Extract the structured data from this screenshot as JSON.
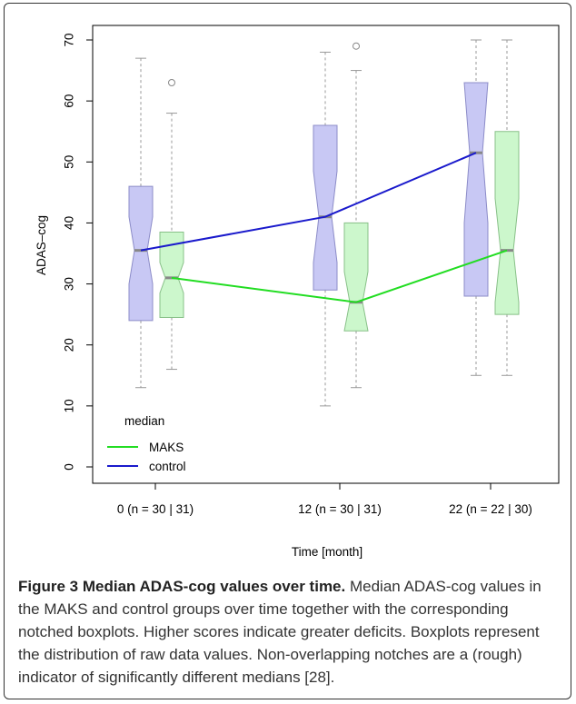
{
  "chart_data": {
    "type": "boxplot",
    "xlabel": "Time [month]",
    "ylabel": "ADAS–cog",
    "ylim": [
      0,
      70
    ],
    "yticks": [
      "0",
      "10",
      "20",
      "30",
      "40",
      "50",
      "60",
      "70"
    ],
    "categories": [
      "0 (n = 30 | 31)",
      "12 (n = 30 | 31)",
      "22 (n = 22 | 30)"
    ],
    "legend": {
      "title": "median",
      "entries": [
        "MAKS",
        "control"
      ],
      "placement": "bottom-left"
    },
    "colors": {
      "control_box": "#c8c8f4",
      "control_border": "#8c8cc8",
      "maks_box": "#ccf7cc",
      "maks_border": "#88c088",
      "control_line": "#1a1acc",
      "maks_line": "#22dd22",
      "whisker": "#999999",
      "median_bar": "#888888"
    },
    "series": [
      {
        "name": "control",
        "medians": [
          35.5,
          41,
          51.5
        ],
        "boxes": [
          {
            "whisker_low": 13,
            "q1": 24,
            "notch_low": 30,
            "median": 35.5,
            "notch_high": 41,
            "q3": 46,
            "whisker_high": 67,
            "outliers": []
          },
          {
            "whisker_low": 10,
            "q1": 29,
            "notch_low": 33.5,
            "median": 41,
            "notch_high": 48.5,
            "q3": 56,
            "whisker_high": 68,
            "outliers": []
          },
          {
            "whisker_low": 15,
            "q1": 28,
            "notch_low": 40,
            "median": 51.5,
            "notch_high": 63,
            "q3": 63,
            "whisker_high": 70,
            "outliers": []
          }
        ]
      },
      {
        "name": "MAKS",
        "medians": [
          31,
          27,
          35.5
        ],
        "boxes": [
          {
            "whisker_low": 16,
            "q1": 24.5,
            "notch_low": 28.5,
            "median": 31,
            "notch_high": 33.5,
            "q3": 38.5,
            "whisker_high": 58,
            "outliers": [
              63
            ]
          },
          {
            "whisker_low": 13,
            "q1": 22.3,
            "notch_low": 22.3,
            "median": 27,
            "notch_high": 32,
            "q3": 40,
            "whisker_high": 65,
            "outliers": [
              69
            ]
          },
          {
            "whisker_low": 15,
            "q1": 25,
            "notch_low": 27,
            "median": 35.5,
            "notch_high": 44,
            "q3": 55,
            "whisker_high": 70,
            "outliers": []
          }
        ]
      }
    ]
  },
  "caption": {
    "title": "Figure 3 Median ADAS-cog values over time.",
    "text": "Median ADAS-cog values in the MAKS and control groups over time together with the corresponding notched boxplots. Higher scores indicate greater deficits. Boxplots represent the distribution of raw data values. Non-overlapping notches are a (rough) indicator of significantly different medians [28]."
  }
}
